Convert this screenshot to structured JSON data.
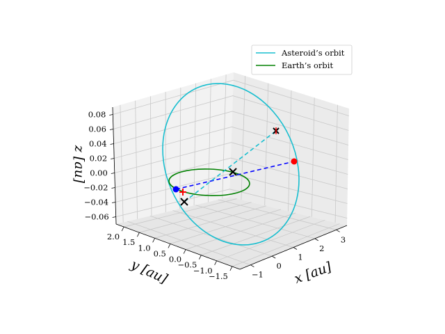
{
  "chart_data": {
    "type": "line3d",
    "title": "",
    "xlabel": "x [au]",
    "ylabel": "y [au]",
    "zlabel": "z [au]",
    "xlim": [
      -1.2,
      3.2
    ],
    "ylim": [
      -1.7,
      2.0
    ],
    "zlim": [
      -0.065,
      0.085
    ],
    "xticks": [
      "−1",
      "0",
      "1",
      "2",
      "3"
    ],
    "yticks": [
      "−1.5",
      "−1.0",
      "−0.5",
      "0.0",
      "0.5",
      "1.0",
      "1.5",
      "2.0"
    ],
    "zticks": [
      "−0.06",
      "−0.04",
      "−0.02",
      "0.00",
      "0.02",
      "0.04",
      "0.06",
      "0.08"
    ],
    "grid": true,
    "legend": "upper-right",
    "series": [
      {
        "name": "Asteroid’s orbit",
        "color": "#17becf",
        "style": "solid"
      },
      {
        "name": "Earth’s orbit",
        "color": "#008000",
        "style": "solid"
      }
    ],
    "markers": [
      {
        "kind": "dot",
        "color": "#0000ff",
        "x": -1.0,
        "y": 0.2,
        "z": 0.0
      },
      {
        "kind": "dot",
        "color": "#ff0000",
        "x": 3.0,
        "y": -0.3,
        "z": 0.02
      },
      {
        "kind": "plus",
        "color": "#ff0000",
        "x": -0.97,
        "y": 0.1,
        "z": -0.005
      },
      {
        "kind": "cross",
        "color": "#000000",
        "x": 1.0,
        "y": 0.0,
        "z": 0.0
      },
      {
        "kind": "cross",
        "color": "#000000",
        "x": 2.0,
        "y": 0.6,
        "z": 0.05
      },
      {
        "kind": "cross",
        "color": "#000000",
        "x": -0.9,
        "y": 0.3,
        "z": -0.03
      }
    ],
    "dashed_lines": [
      {
        "color": "#0000ff",
        "from": "blue-dot",
        "to": "red-dot"
      },
      {
        "color": "#17becf",
        "from": "lower-cross",
        "to": "upper-cross"
      }
    ]
  }
}
